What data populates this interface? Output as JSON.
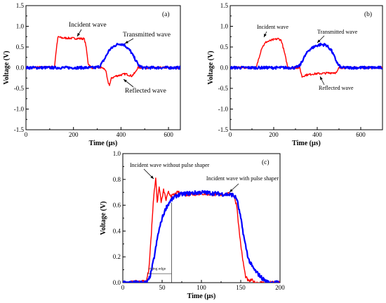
{
  "chart_data": [
    {
      "panel": "(a)",
      "type": "line",
      "xlabel": "Time (μs)",
      "ylabel": "Voltage (V)",
      "xlim": [
        0,
        650
      ],
      "ylim": [
        -1.5,
        1.5
      ],
      "xticks": [
        "0",
        "200",
        "400",
        "600"
      ],
      "yticks": [
        "-1.5",
        "-1.0",
        "-0.5",
        "0.0",
        "0.5",
        "1.0",
        "1.5"
      ],
      "grid": false,
      "series": [
        {
          "name": "Incident wave",
          "color": "#ff0000",
          "x": [
            0,
            120,
            128,
            135,
            150,
            200,
            245,
            252,
            262,
            275,
            320,
            335,
            345,
            352,
            360,
            380,
            420,
            445,
            460,
            470,
            480,
            650
          ],
          "y": [
            0,
            0.02,
            0.45,
            0.75,
            0.72,
            0.71,
            0.7,
            0.55,
            0.1,
            0,
            0,
            -0.05,
            -0.35,
            -0.42,
            -0.25,
            -0.2,
            -0.15,
            -0.2,
            -0.12,
            0,
            0,
            0
          ]
        },
        {
          "name": "Transmitted wave",
          "color": "#0000ff",
          "x": [
            0,
            290,
            310,
            330,
            350,
            375,
            395,
            415,
            440,
            460,
            475,
            490,
            650
          ],
          "y": [
            0,
            0,
            0.03,
            0.2,
            0.42,
            0.54,
            0.58,
            0.55,
            0.4,
            0.2,
            0.05,
            0,
            0
          ]
        }
      ],
      "annotations": [
        "Incident wave",
        "Transmitted wave",
        "Reflected wave"
      ]
    },
    {
      "panel": "(b)",
      "type": "line",
      "xlabel": "Time (μs)",
      "ylabel": "Voltage (V)",
      "xlim": [
        0,
        700
      ],
      "ylim": [
        -1.5,
        1.5
      ],
      "xticks": [
        "0",
        "200",
        "400",
        "600"
      ],
      "yticks": [
        "-1.5",
        "-1.0",
        "-0.5",
        "0.0",
        "0.5",
        "1.0",
        "1.5"
      ],
      "grid": false,
      "series": [
        {
          "name": "Incident wave",
          "color": "#ff0000",
          "x": [
            0,
            120,
            130,
            145,
            165,
            195,
            220,
            235,
            250,
            265,
            320,
            330,
            345,
            380,
            420,
            470,
            490,
            500,
            700
          ],
          "y": [
            0,
            0,
            0.2,
            0.48,
            0.62,
            0.67,
            0.7,
            0.66,
            0.35,
            0,
            0,
            -0.22,
            -0.18,
            -0.15,
            -0.14,
            -0.12,
            -0.12,
            0,
            0
          ]
        },
        {
          "name": "Transmitted wave",
          "color": "#0000ff",
          "x": [
            0,
            300,
            320,
            340,
            360,
            390,
            415,
            440,
            465,
            480,
            495,
            510,
            700
          ],
          "y": [
            0,
            0,
            0.05,
            0.25,
            0.42,
            0.52,
            0.56,
            0.55,
            0.42,
            0.25,
            0.08,
            0,
            0
          ]
        }
      ],
      "annotations": [
        "Incident wave",
        "Transmitted wave",
        "Reflected wave"
      ]
    },
    {
      "panel": "(c)",
      "type": "line",
      "xlabel": "Time (μs)",
      "ylabel": "Voltage (V)",
      "xlim": [
        0,
        200
      ],
      "ylim": [
        0,
        1.0
      ],
      "xticks": [
        "0",
        "50",
        "100",
        "150",
        "200"
      ],
      "yticks": [
        "0.0",
        "0.2",
        "0.4",
        "0.6",
        "0.8",
        "1.0"
      ],
      "grid": false,
      "series": [
        {
          "name": "Incident wave without pulse shaper",
          "color": "#ff0000",
          "x": [
            0,
            30,
            33,
            36,
            39,
            42,
            44,
            46,
            49,
            52,
            55,
            58,
            62,
            70,
            80,
            100,
            120,
            140,
            145,
            148,
            152,
            156,
            160,
            164,
            168,
            175,
            200
          ],
          "y": [
            0,
            0.01,
            0.1,
            0.35,
            0.65,
            0.82,
            0.6,
            0.75,
            0.62,
            0.72,
            0.64,
            0.7,
            0.67,
            0.7,
            0.68,
            0.69,
            0.68,
            0.69,
            0.6,
            0.4,
            0.2,
            0.05,
            0.01,
            0.02,
            0.0,
            0.0,
            0.0
          ]
        },
        {
          "name": "Incident wave with pulse shaper",
          "color": "#0000ff",
          "x": [
            0,
            30,
            33,
            36,
            40,
            45,
            50,
            55,
            60,
            65,
            70,
            80,
            100,
            120,
            140,
            145,
            150,
            155,
            160,
            165,
            170,
            178,
            185,
            200
          ],
          "y": [
            0,
            0,
            0.02,
            0.08,
            0.2,
            0.38,
            0.5,
            0.58,
            0.63,
            0.66,
            0.68,
            0.69,
            0.7,
            0.69,
            0.68,
            0.65,
            0.5,
            0.32,
            0.18,
            0.12,
            0.08,
            0.03,
            0.0,
            0.0
          ]
        }
      ],
      "annotations": [
        "Incident wave without pulse shaper",
        "Incident wave with pulse shaper",
        "rising edge"
      ]
    }
  ]
}
